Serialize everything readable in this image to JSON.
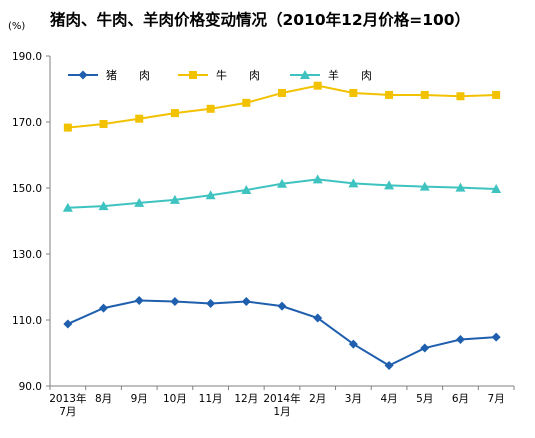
{
  "chart_data": {
    "type": "line",
    "title": "猪肉、牛肉、羊肉价格变动情况（2010年12月价格=100）",
    "unit": "(%)",
    "categories": [
      [
        "2013年",
        "7月"
      ],
      [
        "8月"
      ],
      [
        "9月"
      ],
      [
        "10月"
      ],
      [
        "11月"
      ],
      [
        "12月"
      ],
      [
        "2014年",
        "1月"
      ],
      [
        "2月"
      ],
      [
        "3月"
      ],
      [
        "4月"
      ],
      [
        "5月"
      ],
      [
        "6月"
      ],
      [
        "7月"
      ]
    ],
    "ylim": [
      90,
      190
    ],
    "yticks": [
      "90.0",
      "110.0",
      "130.0",
      "150.0",
      "170.0",
      "190.0"
    ],
    "grid": false,
    "legend": "top-left",
    "series": [
      {
        "name": "猪　　肉",
        "color": "#1f5fae",
        "marker": "diamond",
        "values": [
          108.8,
          113.6,
          115.9,
          115.6,
          115.0,
          115.6,
          114.2,
          110.6,
          102.7,
          96.2,
          101.5,
          104.1,
          104.8
        ]
      },
      {
        "name": "牛　　肉",
        "color": "#f2c200",
        "marker": "square",
        "values": [
          168.3,
          169.4,
          171.0,
          172.7,
          174.0,
          175.8,
          178.8,
          181.0,
          178.8,
          178.2,
          178.2,
          177.8,
          178.2
        ]
      },
      {
        "name": "羊　　肉",
        "color": "#3ec3c0",
        "marker": "triangle",
        "values": [
          144.0,
          144.5,
          145.5,
          146.4,
          147.8,
          149.4,
          151.3,
          152.6,
          151.4,
          150.8,
          150.4,
          150.1,
          149.7
        ]
      }
    ]
  }
}
